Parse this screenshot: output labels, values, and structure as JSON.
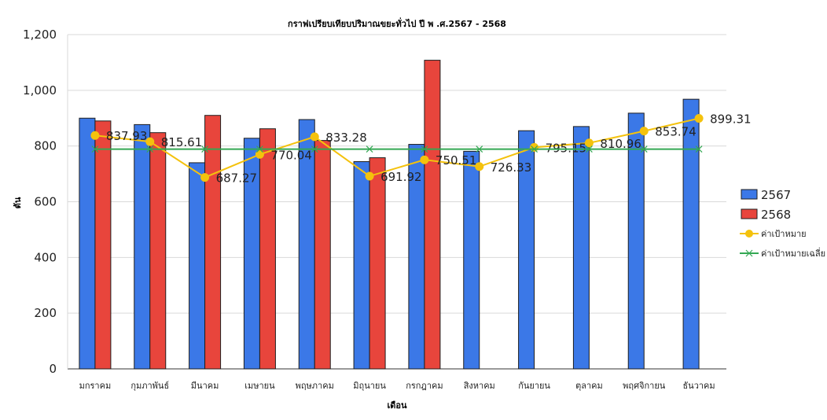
{
  "chart_data": {
    "type": "bar",
    "title": "กราฟเปรียบเทียบปริมาณขยะทั่วไป ปี พ .ศ.2567 - 2568",
    "xlabel": "เดือน",
    "ylabel": "ตัน",
    "ylim": [
      0,
      1200
    ],
    "yticks": [
      "0",
      "200",
      "400",
      "600",
      "800",
      "1,000",
      "1,200"
    ],
    "grid": true,
    "legend_position": "right",
    "categories": [
      "มกราคม",
      "กุมภาพันธ์",
      "มีนาคม",
      "เมษายน",
      "พฤษภาคม",
      "มิถุนายน",
      "กรกฎาคม",
      "สิงหาคม",
      "กันยายน",
      "ตุลาคม",
      "พฤศจิกายน",
      "ธันวาคม"
    ],
    "series": [
      {
        "name": "2567",
        "kind": "bar",
        "color": "#3b78e7",
        "values": [
          900,
          877,
          740,
          828,
          895,
          744,
          806,
          781,
          855,
          870,
          918,
          968
        ]
      },
      {
        "name": "2568",
        "kind": "bar",
        "color": "#e8453c",
        "values": [
          890,
          848,
          910,
          862,
          820,
          758,
          1108,
          null,
          null,
          null,
          null,
          null
        ]
      },
      {
        "name": "ค่าเป้าหมาย",
        "kind": "line",
        "color": "#f4c20d",
        "values": [
          837.93,
          815.61,
          687.27,
          770.04,
          833.28,
          691.92,
          750.51,
          726.33,
          795.15,
          810.96,
          853.74,
          899.31
        ],
        "labels": [
          "837.93",
          "815.61",
          "687.27",
          "770.04",
          "833.28",
          "691.92",
          "750.51",
          "726.33",
          "795.15",
          "810.96",
          "853.74",
          "899.31"
        ]
      },
      {
        "name": "ค่าเป้าหมายเฉลี่ย",
        "kind": "line",
        "color": "#34a853",
        "values": [
          789,
          789,
          789,
          789,
          789,
          789,
          789,
          789,
          789,
          789,
          789,
          789
        ]
      }
    ]
  }
}
